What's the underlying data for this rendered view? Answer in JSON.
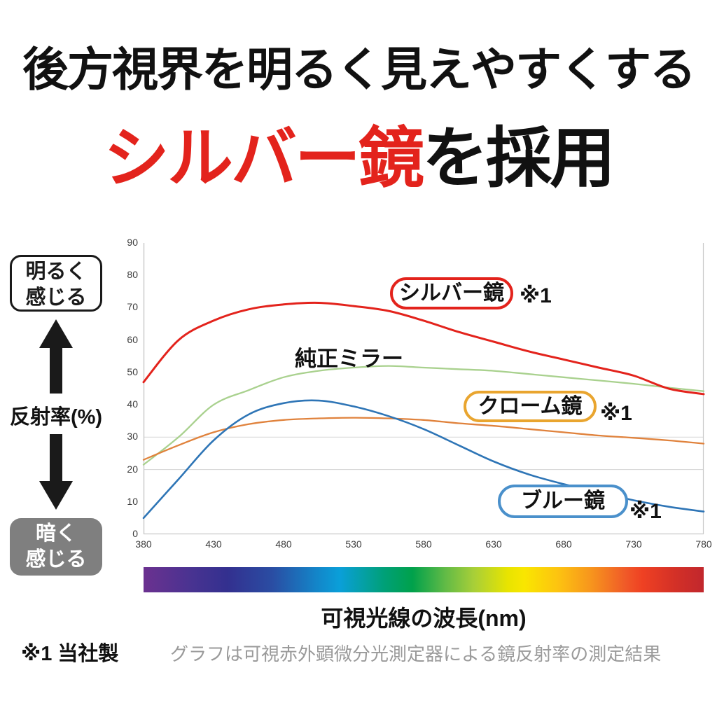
{
  "header": {
    "line1": "後方視界を明るく見えやすくする",
    "line2_red": "シルバー鏡",
    "line2_black": "を採用"
  },
  "left_panel": {
    "bright_box": [
      "明るく",
      "感じる"
    ],
    "axis_label": "反射率(%)",
    "dark_box": [
      "暗く",
      "感じる"
    ]
  },
  "chart_data": {
    "type": "line",
    "title": "",
    "xlabel": "可視光線の波長(nm)",
    "ylabel": "反射率(%)",
    "xlim": [
      380,
      780
    ],
    "ylim": [
      0,
      90
    ],
    "x_ticks": [
      380,
      430,
      480,
      530,
      580,
      630,
      680,
      730,
      780
    ],
    "y_ticks": [
      0,
      10,
      20,
      30,
      40,
      50,
      60,
      70,
      80,
      90
    ],
    "gridlines_y": [
      20,
      30
    ],
    "grid_color": "#d9d9d9",
    "axis_color": "#c9c9c9",
    "x": [
      380,
      405,
      430,
      455,
      480,
      505,
      530,
      555,
      580,
      605,
      630,
      655,
      680,
      705,
      730,
      755,
      780
    ],
    "series": [
      {
        "name": "シルバー鏡",
        "color": "#e3231c",
        "width": 3,
        "values": [
          47,
          60,
          66,
          69.5,
          71,
          71.5,
          70.5,
          69,
          66,
          62.5,
          59.5,
          56.5,
          54,
          51.5,
          49,
          45,
          43.3
        ]
      },
      {
        "name": "純正ミラー",
        "color": "#a9d18e",
        "width": 2.3,
        "values": [
          21.5,
          30,
          40,
          44.5,
          48.5,
          50.5,
          51.5,
          52,
          51.5,
          51,
          50.5,
          49.5,
          48.5,
          47.5,
          46.5,
          45.3,
          44.2
        ]
      },
      {
        "name": "クローム鏡",
        "color": "#e0823c",
        "width": 2.3,
        "values": [
          23,
          27.5,
          31.5,
          34,
          35.3,
          35.8,
          36,
          35.8,
          35.3,
          34.3,
          33.5,
          32.5,
          31.5,
          30.5,
          29.8,
          29,
          28
        ]
      },
      {
        "name": "ブルー鏡",
        "color": "#2e75b6",
        "width": 2.6,
        "values": [
          5,
          17,
          29,
          37,
          40.5,
          41.3,
          39.5,
          36.5,
          32.5,
          27.5,
          22.5,
          18.5,
          15.5,
          13,
          10.5,
          8.5,
          7
        ]
      }
    ],
    "note_mark": "※1",
    "legend_position": "inline-badges",
    "grid": "partial"
  },
  "spectrum": {
    "caption": "可視光線の波長(nm)"
  },
  "footer": {
    "note1": "※1 当社製",
    "note2": "グラフは可視赤外顕微分光測定器による鏡反射率の測定結果"
  }
}
